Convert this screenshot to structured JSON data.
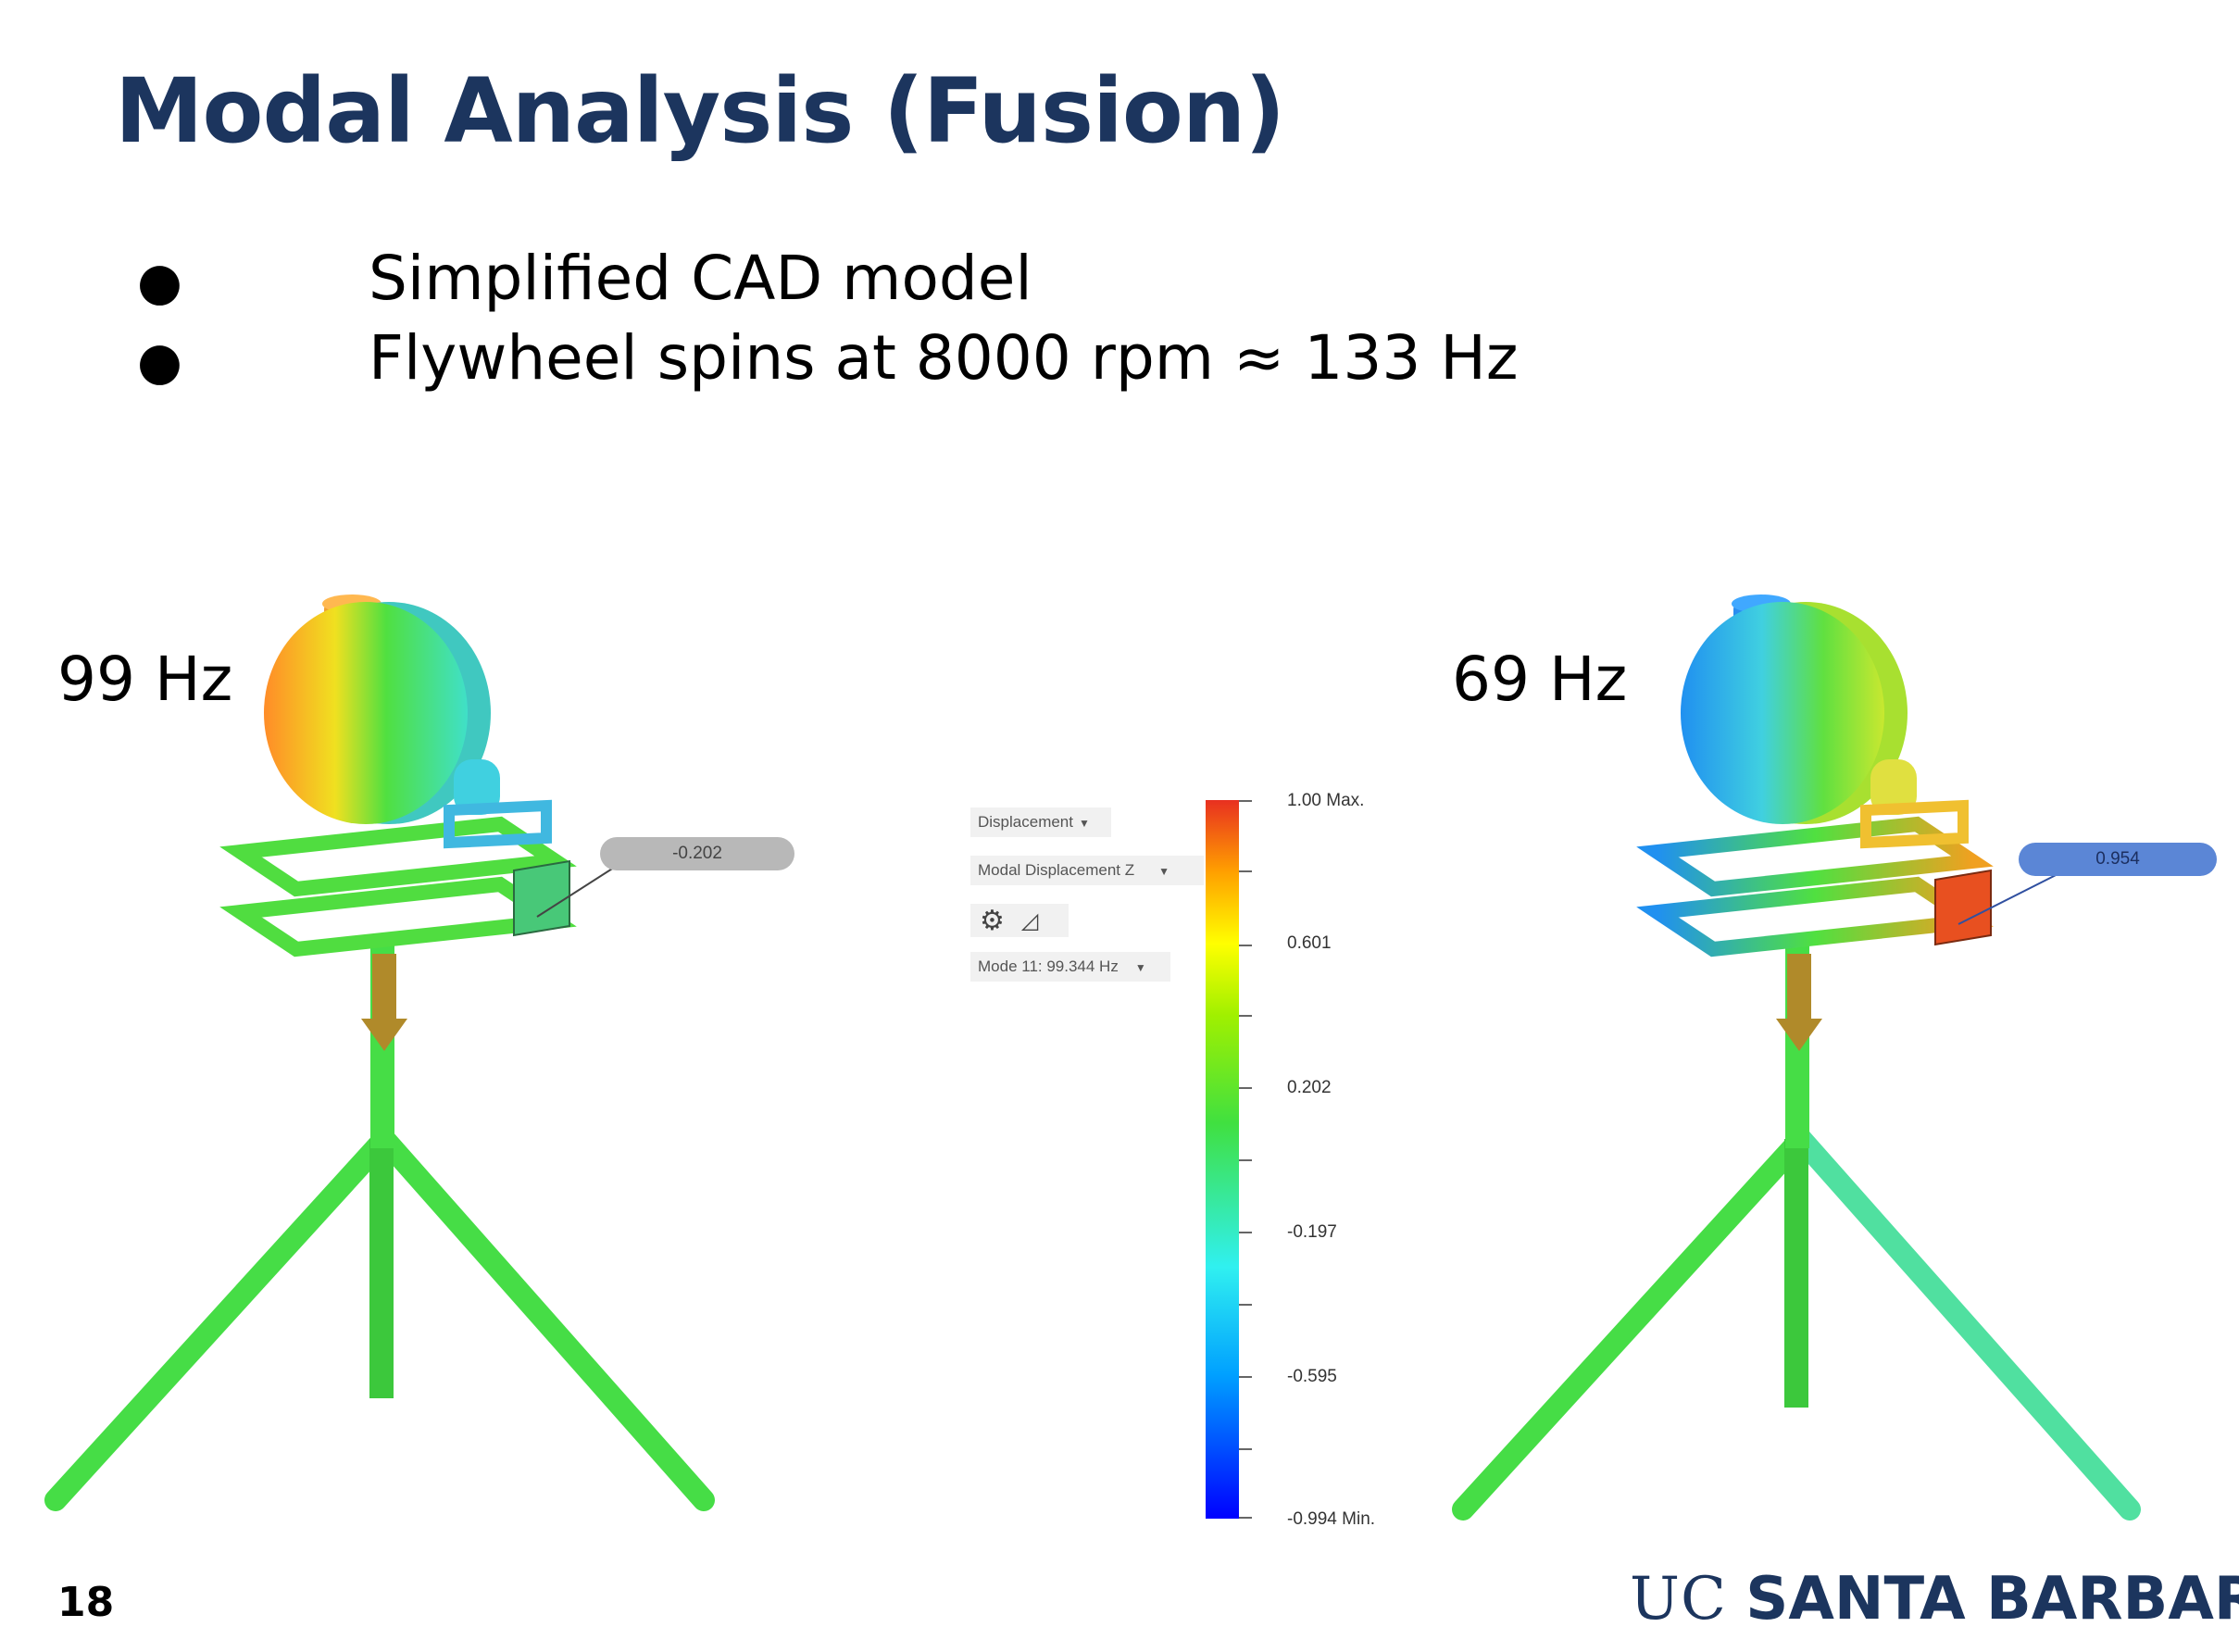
{
  "slide": {
    "title": "Modal Analysis (Fusion)",
    "bullets": [
      "Simplified CAD model",
      "Flywheel spins at 8000 rpm ≈ 133 Hz"
    ],
    "bullet_glyph": "●",
    "left_frequency": "99 Hz",
    "right_frequency": "69 Hz",
    "slide_number": "18",
    "logo": {
      "uc": "UC",
      "name": "SANTA BARBARA"
    }
  },
  "results_panel": {
    "result_type": "Displacement",
    "component": "Modal Displacement Z",
    "mode": "Mode 11: 99.344 Hz",
    "icons": [
      "gear-icon",
      "triangle-ruler-icon"
    ]
  },
  "color_scale": {
    "labels": [
      "1.00 Max.",
      "0.601",
      "0.202",
      "-0.197",
      "-0.595",
      "-0.994 Min."
    ],
    "max": 1.0,
    "min": -0.994
  },
  "probes": {
    "left": "-0.202",
    "right": "0.954"
  },
  "colors": {
    "title": "#1c355e",
    "logo": "#1c355e",
    "scale_max": "#e83020",
    "scale_min": "#0000ff"
  }
}
